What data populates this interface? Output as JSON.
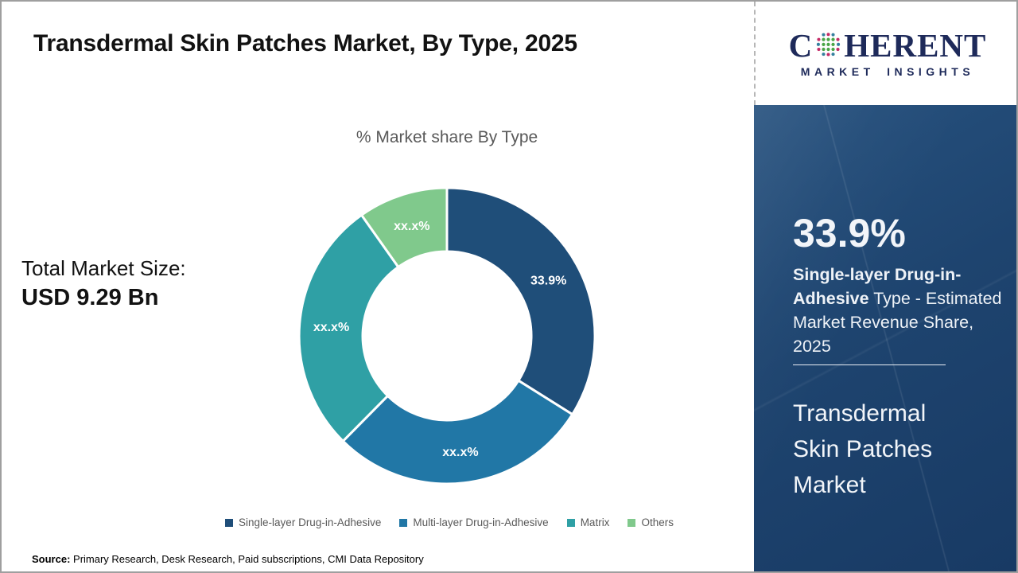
{
  "header": {
    "title": "Transdermal Skin Patches Market, By Type, 2025"
  },
  "logo": {
    "letter_c": "C",
    "name_rest": "HERENT",
    "tagline": "MARKET INSIGHTS"
  },
  "chart_data": {
    "type": "donut",
    "title": "% Market share By Type",
    "start_angle_deg": 0,
    "direction": "clockwise",
    "inner_radius_ratio": 0.57,
    "legend_position": "bottom",
    "series": [
      {
        "name": "Single-layer Drug-in-Adhesive",
        "value": 33.9,
        "label": "33.9%",
        "color": "#1F4E79"
      },
      {
        "name": "Multi-layer Drug-in-Adhesive",
        "value": 28.5,
        "label": "xx.x%",
        "color": "#2177A6"
      },
      {
        "name": "Matrix",
        "value": 27.8,
        "label": "xx.x%",
        "color": "#2FA0A5"
      },
      {
        "name": "Others",
        "value": 9.8,
        "label": "xx.x%",
        "color": "#80C98C"
      }
    ]
  },
  "total_market": {
    "label": "Total Market Size:",
    "value": "USD 9.29 Bn"
  },
  "sidebar": {
    "highlight_value": "33.9%",
    "highlight_bold": "Single-layer Drug-in-Adhesive",
    "highlight_rest": " Type - Estimated Market Revenue Share, 2025",
    "market_name": "Transdermal Skin Patches Market"
  },
  "source": {
    "label": "Source:",
    "text": " Primary Research, Desk Research, Paid subscriptions, CMI Data Repository"
  },
  "colors": {
    "sidebar_background": "#1d4270",
    "logo_navy": "#1e2a5a",
    "muted_text": "#595959",
    "globe_green": "#4aa546",
    "globe_pink": "#c42a66",
    "globe_teal": "#34809e"
  }
}
